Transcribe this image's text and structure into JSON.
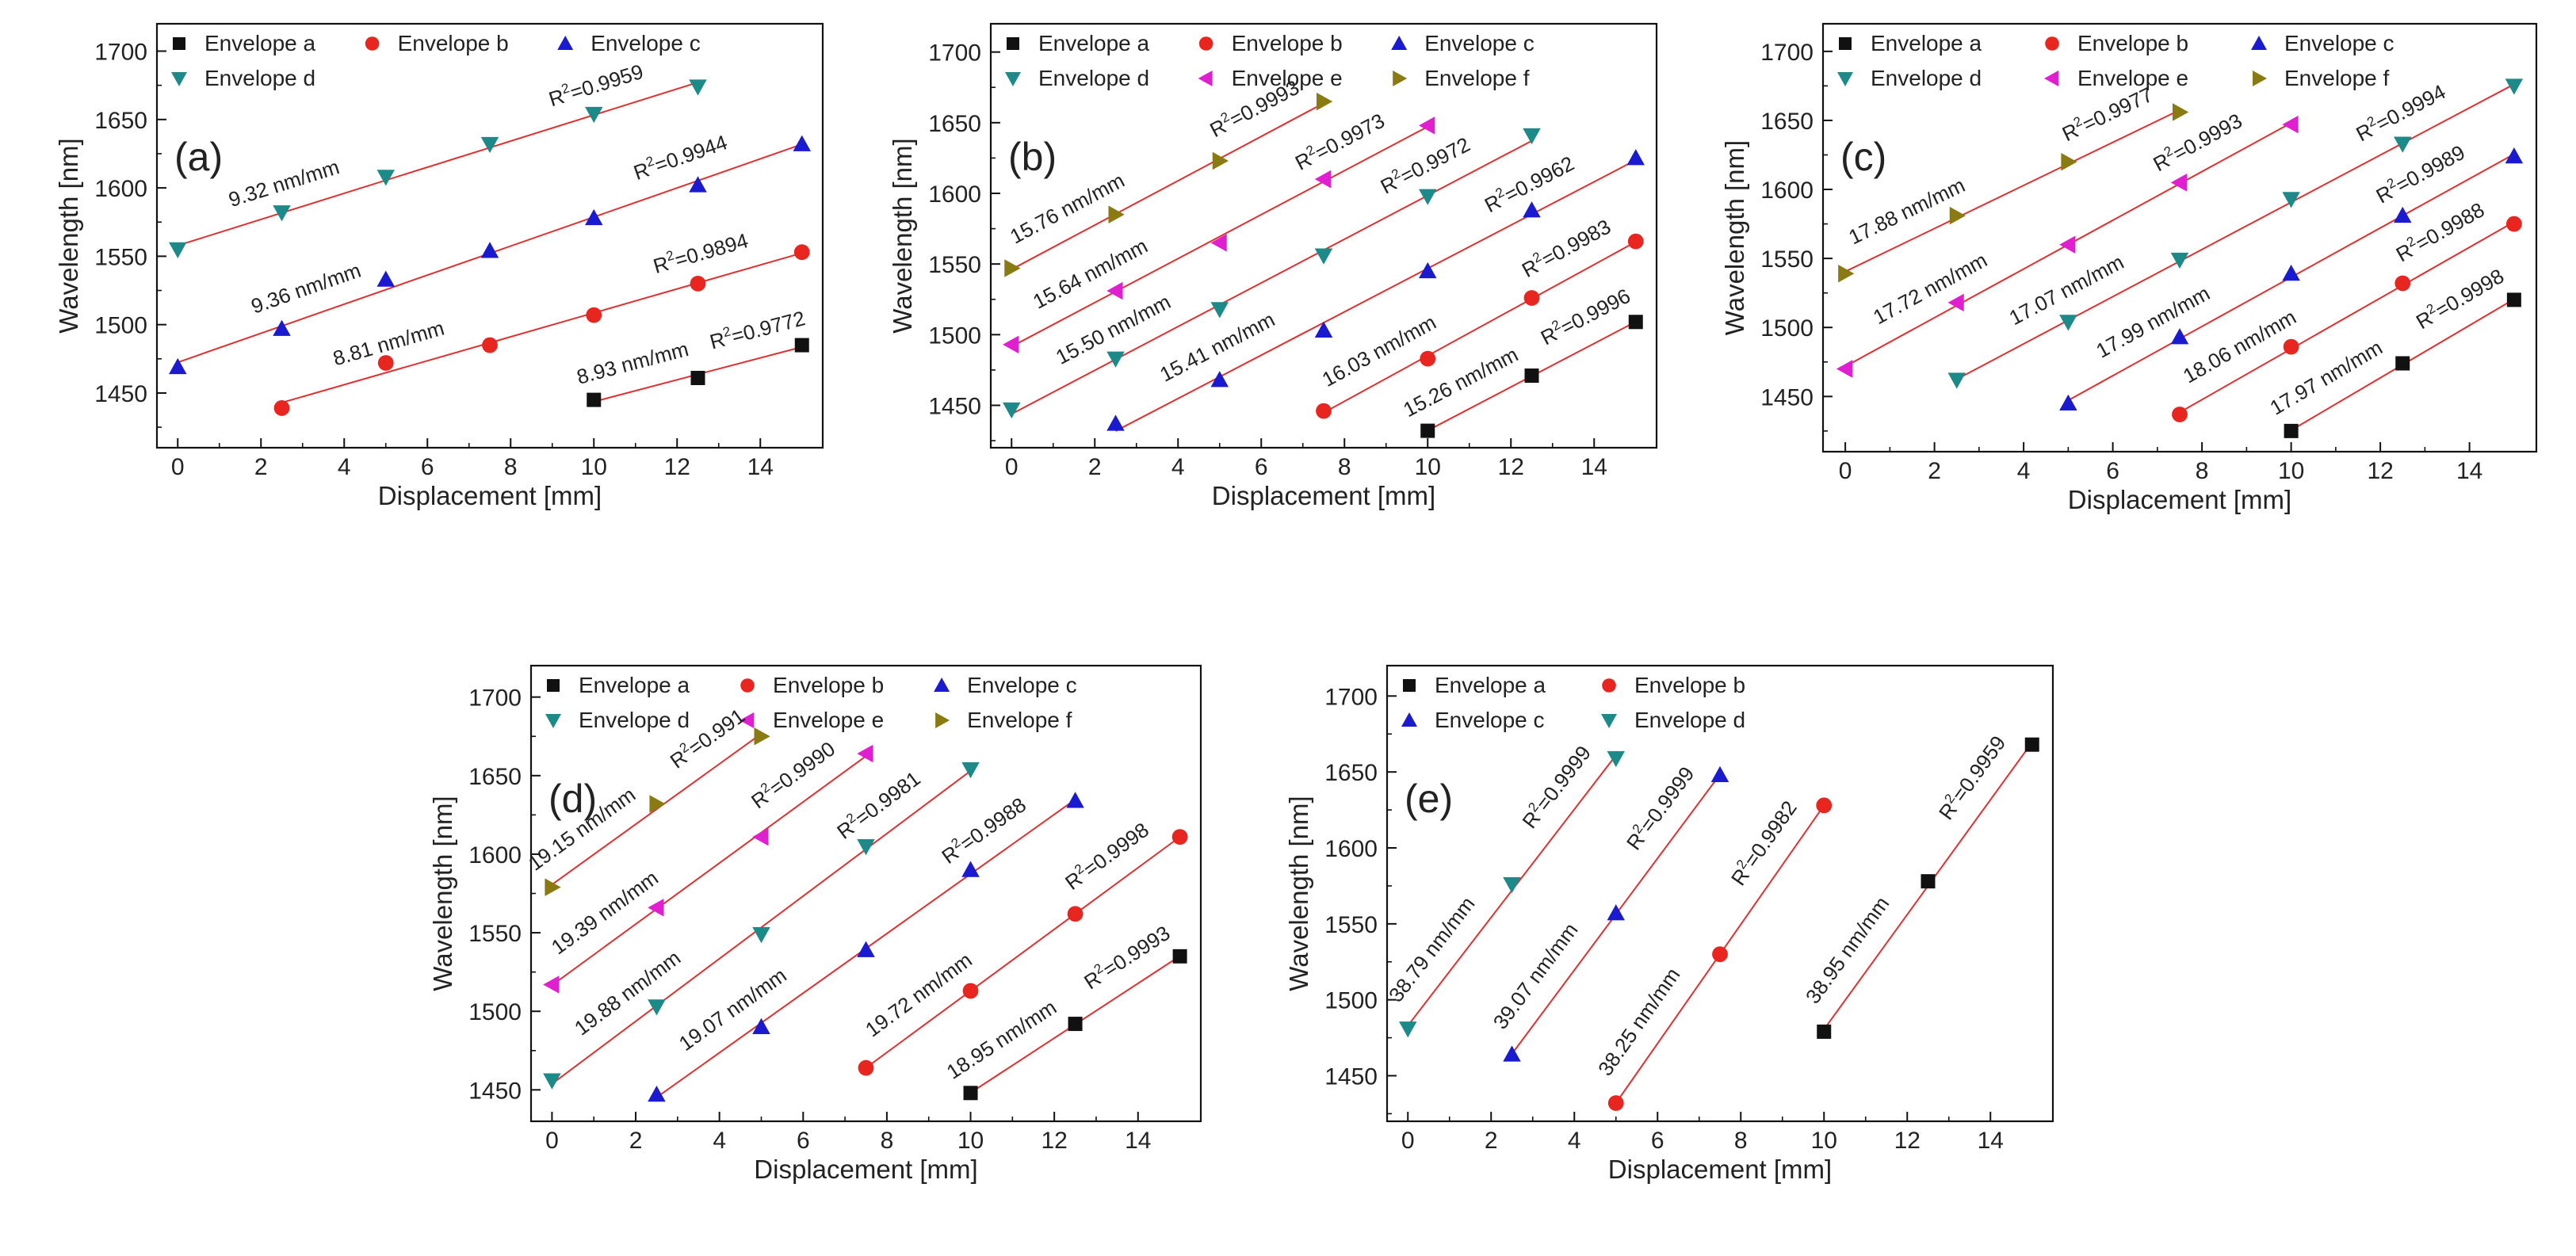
{
  "chart_data": [
    {
      "type": "scatter",
      "panel_label": "(a)",
      "xlabel": "Displacement [mm]",
      "ylabel": "Wavelength [nm]",
      "xlim": [
        -0.5,
        15.5
      ],
      "ylim": [
        1410,
        1720
      ],
      "xticks": [
        0,
        2,
        4,
        6,
        8,
        10,
        12,
        14
      ],
      "yticks": [
        1450,
        1500,
        1550,
        1600,
        1650,
        1700
      ],
      "legend_cols": 3,
      "series": [
        {
          "name": "Envelope a",
          "marker": "square",
          "color": "#111111",
          "x": [
            10,
            12.5,
            15
          ],
          "y": [
            1445,
            1461,
            1485
          ],
          "slope": "8.93 nm/mm",
          "r2": "0.9772"
        },
        {
          "name": "Envelope b",
          "marker": "circle",
          "color": "#e8251f",
          "x": [
            2.5,
            5,
            7.5,
            10,
            12.5,
            15
          ],
          "y": [
            1439,
            1472,
            1485,
            1507,
            1530,
            1553
          ],
          "slope": "8.81 nm/mm",
          "r2": "0.9894"
        },
        {
          "name": "Envelope c",
          "marker": "triangle-up",
          "color": "#1a1ad0",
          "x": [
            0,
            2.5,
            5,
            7.5,
            10,
            12.5,
            15
          ],
          "y": [
            1469,
            1497,
            1533,
            1554,
            1578,
            1602,
            1632
          ],
          "slope": "9.36 nm/mm",
          "r2": "0.9944"
        },
        {
          "name": "Envelope d",
          "marker": "triangle-down",
          "color": "#1d8a8a",
          "x": [
            0,
            2.5,
            5,
            7.5,
            10,
            12.5
          ],
          "y": [
            1555,
            1582,
            1608,
            1632,
            1654,
            1674
          ],
          "slope": "9.32 nm/mm",
          "r2": "0.9959"
        }
      ]
    },
    {
      "type": "scatter",
      "panel_label": "(b)",
      "xlabel": "Displacement [mm]",
      "ylabel": "Wavelength [nm]",
      "xlim": [
        -0.5,
        15.5
      ],
      "ylim": [
        1420,
        1720
      ],
      "xticks": [
        0,
        2,
        4,
        6,
        8,
        10,
        12,
        14
      ],
      "yticks": [
        1450,
        1500,
        1550,
        1600,
        1650,
        1700
      ],
      "legend_cols": 3,
      "series": [
        {
          "name": "Envelope a",
          "marker": "square",
          "color": "#111111",
          "x": [
            10,
            12.5,
            15
          ],
          "y": [
            1432,
            1471,
            1509
          ],
          "slope": "15.26 nm/mm",
          "r2": "0.9996"
        },
        {
          "name": "Envelope b",
          "marker": "circle",
          "color": "#e8251f",
          "x": [
            7.5,
            10,
            12.5,
            15
          ],
          "y": [
            1446,
            1483,
            1526,
            1566
          ],
          "slope": "16.03 nm/mm",
          "r2": "0.9983"
        },
        {
          "name": "Envelope c",
          "marker": "triangle-up",
          "color": "#1a1ad0",
          "x": [
            2.5,
            5,
            7.5,
            10,
            12.5,
            15
          ],
          "y": [
            1437,
            1468,
            1503,
            1545,
            1588,
            1625
          ],
          "slope": "15.41 nm/mm",
          "r2": "0.9962"
        },
        {
          "name": "Envelope d",
          "marker": "triangle-down",
          "color": "#1d8a8a",
          "x": [
            0,
            2.5,
            5,
            7.5,
            10,
            12.5
          ],
          "y": [
            1447,
            1483,
            1518,
            1556,
            1598,
            1641
          ],
          "slope": "15.50 nm/mm",
          "r2": "0.9972"
        },
        {
          "name": "Envelope e",
          "marker": "triangle-left",
          "color": "#e020d0",
          "x": [
            0,
            2.5,
            5,
            7.5,
            10
          ],
          "y": [
            1493,
            1531,
            1565,
            1610,
            1648
          ],
          "slope": "15.64 nm/mm",
          "r2": "0.9973"
        },
        {
          "name": "Envelope f",
          "marker": "triangle-right",
          "color": "#8a7a12",
          "x": [
            0,
            2.5,
            5,
            7.5
          ],
          "y": [
            1547,
            1585,
            1623,
            1665
          ],
          "slope": "15.76 nm/mm",
          "r2": "0.9993"
        }
      ]
    },
    {
      "type": "scatter",
      "panel_label": "(c)",
      "xlabel": "Displacement [mm]",
      "ylabel": "Wavelength [nm]",
      "xlim": [
        -0.5,
        15.5
      ],
      "ylim": [
        1410,
        1720
      ],
      "xticks": [
        0,
        2,
        4,
        6,
        8,
        10,
        12,
        14
      ],
      "yticks": [
        1450,
        1500,
        1550,
        1600,
        1650,
        1700
      ],
      "legend_cols": 3,
      "series": [
        {
          "name": "Envelope a",
          "marker": "square",
          "color": "#111111",
          "x": [
            10,
            12.5,
            15
          ],
          "y": [
            1425,
            1474,
            1520
          ],
          "slope": "17.97 nm/mm",
          "r2": "0.9998"
        },
        {
          "name": "Envelope b",
          "marker": "circle",
          "color": "#e8251f",
          "x": [
            7.5,
            10,
            12.5,
            15
          ],
          "y": [
            1437,
            1486,
            1532,
            1575
          ],
          "slope": "18.06 nm/mm",
          "r2": "0.9988"
        },
        {
          "name": "Envelope c",
          "marker": "triangle-up",
          "color": "#1a1ad0",
          "x": [
            5,
            7.5,
            10,
            12.5,
            15
          ],
          "y": [
            1445,
            1493,
            1539,
            1581,
            1624
          ],
          "slope": "17.99 nm/mm",
          "r2": "0.9989"
        },
        {
          "name": "Envelope d",
          "marker": "triangle-down",
          "color": "#1d8a8a",
          "x": [
            2.5,
            5,
            7.5,
            10,
            12.5,
            15
          ],
          "y": [
            1462,
            1504,
            1549,
            1593,
            1633,
            1675
          ],
          "slope": "17.07 nm/mm",
          "r2": "0.9994"
        },
        {
          "name": "Envelope e",
          "marker": "triangle-left",
          "color": "#e020d0",
          "x": [
            0,
            2.5,
            5,
            7.5,
            10
          ],
          "y": [
            1470,
            1518,
            1560,
            1605,
            1647
          ],
          "slope": "17.72 nm/mm",
          "r2": "0.9993"
        },
        {
          "name": "Envelope f",
          "marker": "triangle-right",
          "color": "#8a7a12",
          "x": [
            0,
            2.5,
            5,
            7.5
          ],
          "y": [
            1539,
            1581,
            1620,
            1656
          ],
          "slope": "17.88 nm/mm",
          "r2": "0.9977"
        }
      ]
    },
    {
      "type": "scatter",
      "panel_label": "(d)",
      "xlabel": "Displacement [mm]",
      "ylabel": "Wavelength [nm]",
      "xlim": [
        -0.5,
        15.5
      ],
      "ylim": [
        1430,
        1720
      ],
      "xticks": [
        0,
        2,
        4,
        6,
        8,
        10,
        12,
        14
      ],
      "yticks": [
        1450,
        1500,
        1550,
        1600,
        1650,
        1700
      ],
      "legend_cols": 3,
      "series": [
        {
          "name": "Envelope a",
          "marker": "square",
          "color": "#111111",
          "x": [
            10,
            12.5,
            15
          ],
          "y": [
            1448,
            1492,
            1535
          ],
          "slope": "18.95 nm/mm",
          "r2": "0.9993"
        },
        {
          "name": "Envelope b",
          "marker": "circle",
          "color": "#e8251f",
          "x": [
            7.5,
            10,
            12.5,
            15
          ],
          "y": [
            1464,
            1513,
            1562,
            1611
          ],
          "slope": "19.72 nm/mm",
          "r2": "0.9998"
        },
        {
          "name": "Envelope c",
          "marker": "triangle-up",
          "color": "#1a1ad0",
          "x": [
            2.5,
            5,
            7.5,
            10,
            12.5
          ],
          "y": [
            1447,
            1490,
            1539,
            1590,
            1634
          ],
          "slope": "19.07 nm/mm",
          "r2": "0.9988"
        },
        {
          "name": "Envelope d",
          "marker": "triangle-down",
          "color": "#1d8a8a",
          "x": [
            0,
            2.5,
            5,
            7.5,
            10
          ],
          "y": [
            1456,
            1503,
            1549,
            1605,
            1654
          ],
          "slope": "19.88 nm/mm",
          "r2": "0.9981"
        },
        {
          "name": "Envelope e",
          "marker": "triangle-left",
          "color": "#e020d0",
          "x": [
            0,
            2.5,
            5,
            7.5
          ],
          "y": [
            1517,
            1566,
            1611,
            1664
          ],
          "slope": "19.39 nm/mm",
          "r2": "0.9990"
        },
        {
          "name": "Envelope f",
          "marker": "triangle-right",
          "color": "#8a7a12",
          "x": [
            0,
            2.5,
            5
          ],
          "y": [
            1579,
            1632,
            1675
          ],
          "slope": "19.15 nm/mm",
          "r2": "0.991"
        }
      ]
    },
    {
      "type": "scatter",
      "panel_label": "(e)",
      "xlabel": "Displacement [mm]",
      "ylabel": "Wavelength [nm]",
      "xlim": [
        -0.5,
        15.5
      ],
      "ylim": [
        1420,
        1720
      ],
      "xticks": [
        0,
        2,
        4,
        6,
        8,
        10,
        12,
        14
      ],
      "yticks": [
        1450,
        1500,
        1550,
        1600,
        1650,
        1700
      ],
      "legend_cols": 2,
      "series": [
        {
          "name": "Envelope a",
          "marker": "square",
          "color": "#111111",
          "x": [
            10,
            12.5,
            15
          ],
          "y": [
            1479,
            1578,
            1668
          ],
          "slope": "38.95 nm/mm",
          "r2": "0.9959"
        },
        {
          "name": "Envelope b",
          "marker": "circle",
          "color": "#e8251f",
          "x": [
            5,
            7.5,
            10
          ],
          "y": [
            1432,
            1530,
            1628
          ],
          "slope": "38.25 nm/mm",
          "r2": "0.9982"
        },
        {
          "name": "Envelope c",
          "marker": "triangle-up",
          "color": "#1a1ad0",
          "x": [
            2.5,
            5,
            7.5
          ],
          "y": [
            1464,
            1557,
            1648
          ],
          "slope": "39.07 nm/mm",
          "r2": "0.9999"
        },
        {
          "name": "Envelope d",
          "marker": "triangle-down",
          "color": "#1d8a8a",
          "x": [
            0,
            2.5,
            5
          ],
          "y": [
            1481,
            1576,
            1659
          ],
          "slope": "38.79 nm/mm",
          "r2": "0.9999"
        }
      ]
    }
  ]
}
